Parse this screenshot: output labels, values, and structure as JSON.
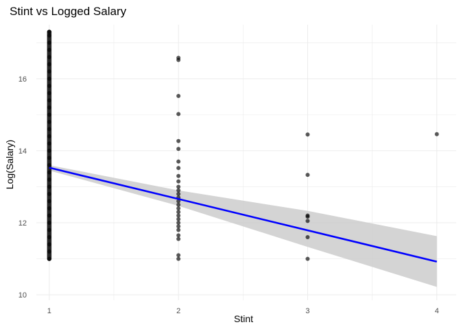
{
  "chart_data": {
    "type": "scatter",
    "title": "Stint vs Logged Salary",
    "xlabel": "Stint",
    "ylabel": "Log(Salary)",
    "xlim": [
      0.9,
      4.15
    ],
    "ylim": [
      9.85,
      17.5
    ],
    "x_ticks": [
      1,
      2,
      3,
      4
    ],
    "y_ticks": [
      10,
      12,
      14,
      16
    ],
    "grid": true,
    "colors": {
      "points": "#000000",
      "trend": "#0000ff",
      "band": "#cccccc",
      "grid": "#ebebeb"
    },
    "series": [
      {
        "points": [
          [
            1,
            11.0
          ],
          [
            1,
            11.2
          ],
          [
            1,
            11.4
          ],
          [
            1,
            11.6
          ],
          [
            1,
            11.8
          ],
          [
            1,
            12.0
          ],
          [
            1,
            12.2
          ],
          [
            1,
            12.4
          ],
          [
            1,
            12.6
          ],
          [
            1,
            12.8
          ],
          [
            1,
            13.0
          ],
          [
            1,
            13.2
          ],
          [
            1,
            13.4
          ],
          [
            1,
            13.6
          ],
          [
            1,
            13.8
          ],
          [
            1,
            14.0
          ],
          [
            1,
            14.2
          ],
          [
            1,
            14.4
          ],
          [
            1,
            14.6
          ],
          [
            1,
            14.8
          ],
          [
            1,
            15.0
          ],
          [
            1,
            15.2
          ],
          [
            1,
            15.4
          ],
          [
            1,
            15.6
          ],
          [
            1,
            15.8
          ],
          [
            1,
            16.0
          ],
          [
            1,
            16.2
          ],
          [
            1,
            16.4
          ],
          [
            1,
            16.6
          ],
          [
            1,
            16.8
          ],
          [
            1,
            17.0
          ],
          [
            1,
            17.2
          ],
          [
            1,
            17.3
          ],
          [
            2,
            16.58
          ],
          [
            2,
            16.52
          ],
          [
            2,
            15.52
          ],
          [
            2,
            15.02
          ],
          [
            2,
            14.27
          ],
          [
            2,
            14.05
          ],
          [
            2,
            13.7
          ],
          [
            2,
            13.52
          ],
          [
            2,
            13.3
          ],
          [
            2,
            13.15
          ],
          [
            2,
            13.0
          ],
          [
            2,
            12.9
          ],
          [
            2,
            12.8
          ],
          [
            2,
            12.7
          ],
          [
            2,
            12.6
          ],
          [
            2,
            12.5
          ],
          [
            2,
            12.4
          ],
          [
            2,
            12.3
          ],
          [
            2,
            12.2
          ],
          [
            2,
            12.1
          ],
          [
            2,
            12.0
          ],
          [
            2,
            11.9
          ],
          [
            2,
            11.8
          ],
          [
            2,
            11.65
          ],
          [
            2,
            11.55
          ],
          [
            2,
            11.1
          ],
          [
            2,
            11.0
          ],
          [
            3,
            14.45
          ],
          [
            3,
            13.33
          ],
          [
            3,
            12.2
          ],
          [
            3,
            12.17
          ],
          [
            3,
            12.05
          ],
          [
            3,
            11.6
          ],
          [
            3,
            11.0
          ],
          [
            4,
            14.46
          ]
        ]
      }
    ],
    "trend_line": {
      "x": [
        1,
        4
      ],
      "y": [
        13.53,
        10.92
      ]
    },
    "confidence_band": {
      "x": [
        1,
        2,
        3,
        4
      ],
      "upper": [
        13.6,
        12.9,
        12.33,
        11.63
      ],
      "lower": [
        13.45,
        12.47,
        11.33,
        10.22
      ]
    }
  }
}
